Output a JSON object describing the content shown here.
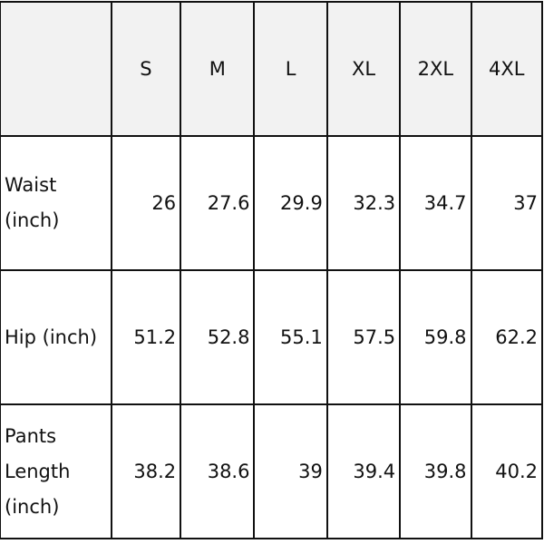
{
  "header": [
    "",
    "S",
    "M",
    "L",
    "XL",
    "2XL",
    "4XL"
  ],
  "rows": [
    {
      "label": "Waist (inch)",
      "values": [
        "26",
        "27.6",
        "29.9",
        "32.3",
        "34.7",
        "37"
      ]
    },
    {
      "label": "Hip (inch)",
      "values": [
        "51.2",
        "52.8",
        "55.1",
        "57.5",
        "59.8",
        "62.2"
      ]
    },
    {
      "label": "Pants Length (inch)",
      "values": [
        "38.2",
        "38.6",
        "39",
        "39.4",
        "39.8",
        "40.2"
      ]
    }
  ],
  "colors": {
    "header_bg": "#f2f2f2",
    "border": "#111111"
  }
}
